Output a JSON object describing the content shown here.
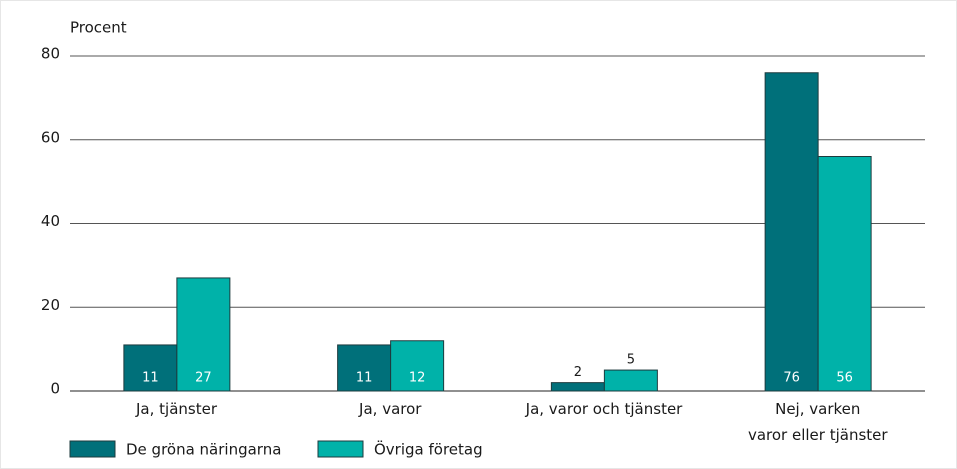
{
  "chart_data": {
    "type": "bar",
    "y_axis_label": "Procent",
    "categories": [
      "Ja, tjänster",
      "Ja, varor",
      "Ja, varor och tjänster",
      "Nej, varken\nvaror eller tjänster"
    ],
    "series": [
      {
        "name": "De gröna näringarna",
        "color": "#00707a",
        "values": [
          11,
          11,
          2,
          76
        ]
      },
      {
        "name": "Övriga företag",
        "color": "#00b2a9",
        "values": [
          27,
          12,
          5,
          56
        ]
      }
    ],
    "ylim": [
      0,
      80
    ],
    "yticks": [
      0,
      20,
      40,
      60,
      80
    ],
    "grid": true,
    "legend": "bottom"
  }
}
